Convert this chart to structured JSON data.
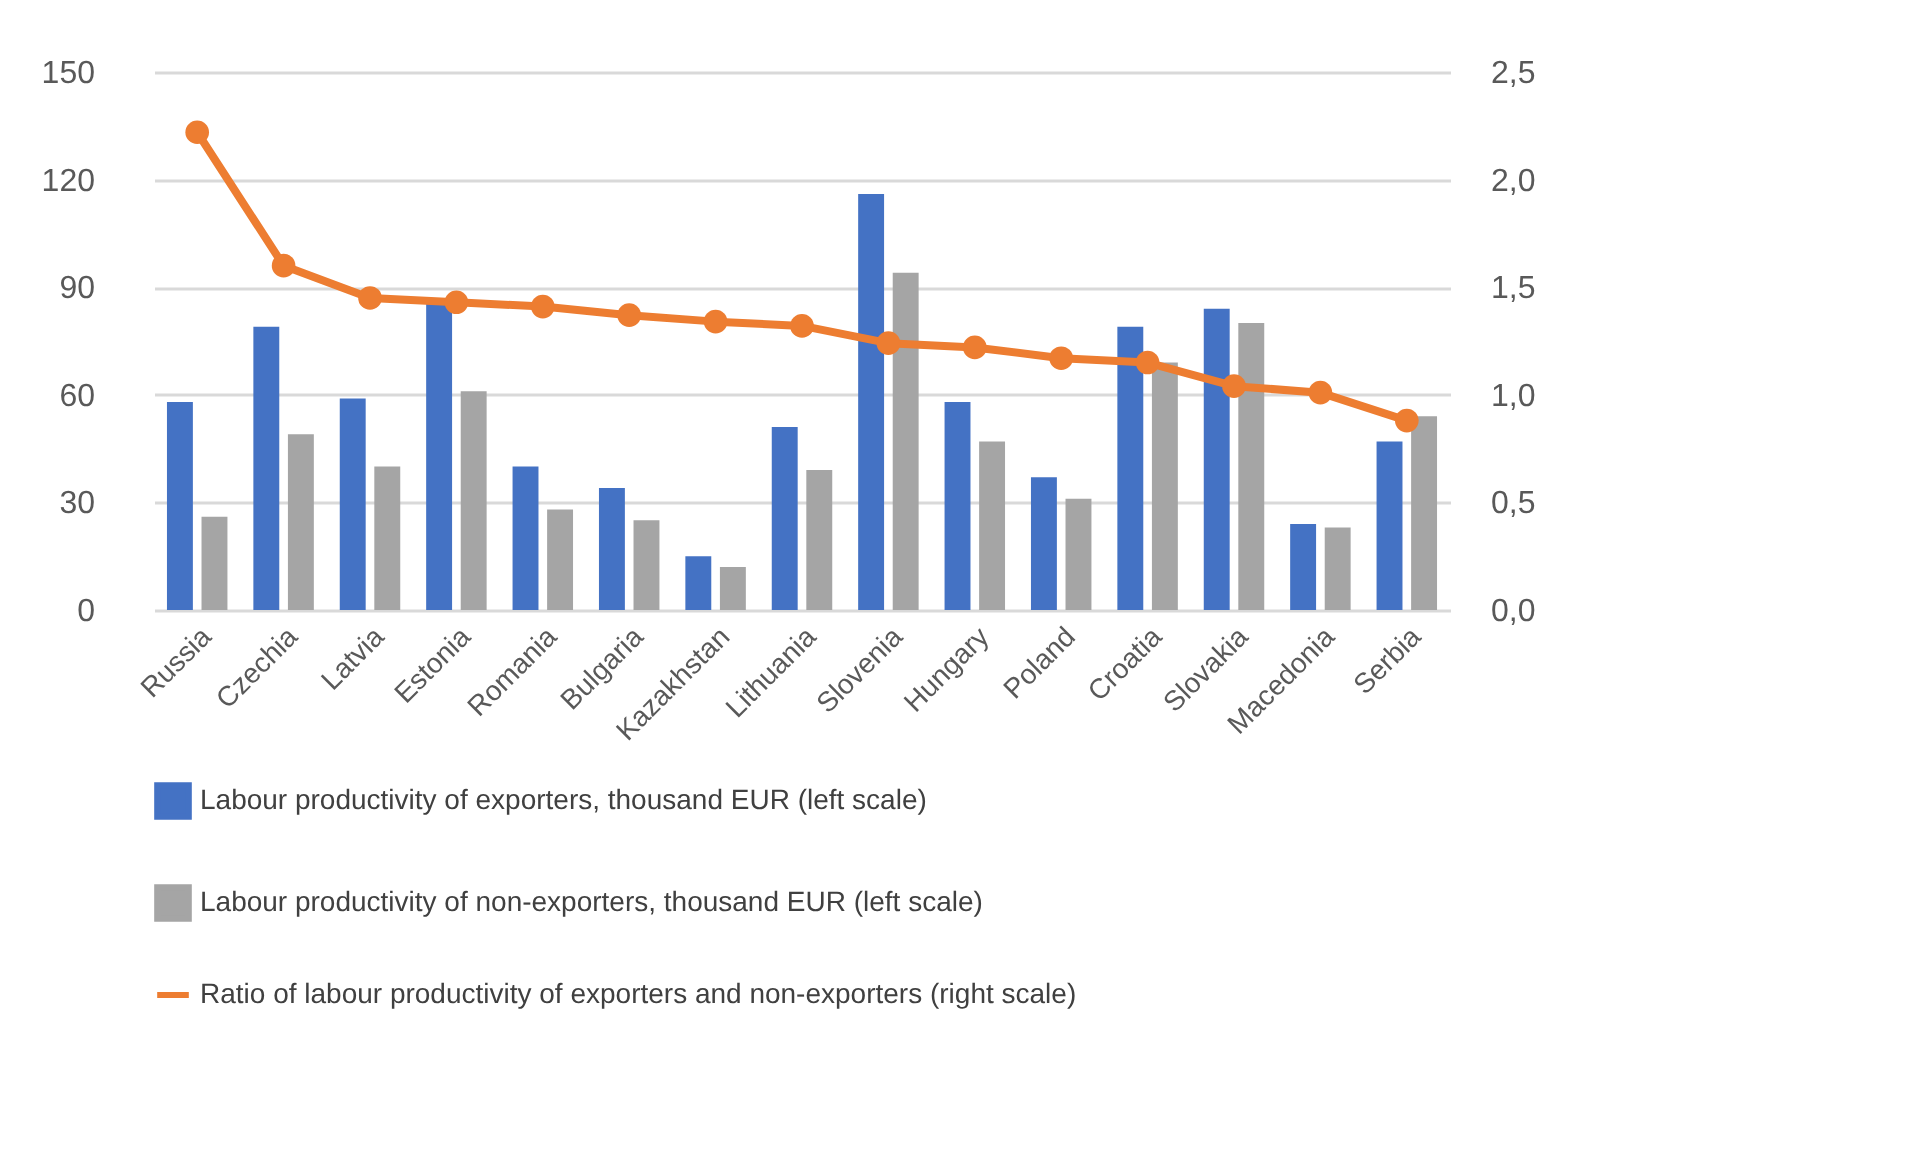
{
  "chart_data": {
    "type": "bar",
    "categories": [
      "Russia",
      "Czechia",
      "Latvia",
      "Estonia",
      "Romania",
      "Bulgaria",
      "Kazakhstan",
      "Lithuania",
      "Slovenia",
      "Hungary",
      "Poland",
      "Croatia",
      "Slovakia",
      "Macedonia",
      "Serbia"
    ],
    "series": [
      {
        "name": "Labour productivity of exporters, thousand EUR (left scale)",
        "color": "#4472c4",
        "values": [
          58,
          79,
          59,
          87,
          40,
          34,
          15,
          51,
          116,
          58,
          37,
          79,
          84,
          24,
          47
        ]
      },
      {
        "name": "Labour productivity of non-exporters, thousand EUR (left scale)",
        "color": "#a5a5a5",
        "values": [
          26,
          49,
          40,
          61,
          28,
          25,
          12,
          39,
          94,
          47,
          31,
          69,
          80,
          23,
          54
        ]
      },
      {
        "name": "Ratio of labour productivity of exporters and non-exporters (right scale)",
        "type": "line",
        "axis": "y2",
        "color": "#ed7d31",
        "marker": "circle",
        "values": [
          2.22,
          1.6,
          1.45,
          1.43,
          1.41,
          1.37,
          1.34,
          1.32,
          1.24,
          1.22,
          1.17,
          1.15,
          1.04,
          1.01,
          0.88
        ]
      }
    ],
    "ylim": [
      0,
      150
    ],
    "yticks": [
      0,
      30,
      60,
      90,
      120,
      150
    ],
    "y2lim": [
      0,
      2.5
    ],
    "y2ticks": [
      {
        "value": 0,
        "label": "0,0"
      },
      {
        "value": 0.5,
        "label": "0,5"
      },
      {
        "value": 1,
        "label": "1,0"
      },
      {
        "value": 1.5,
        "label": "1,5"
      },
      {
        "value": 2,
        "label": "2,0"
      },
      {
        "value": 2.5,
        "label": "2,5"
      }
    ],
    "grid": "y",
    "legend": "bottom"
  }
}
